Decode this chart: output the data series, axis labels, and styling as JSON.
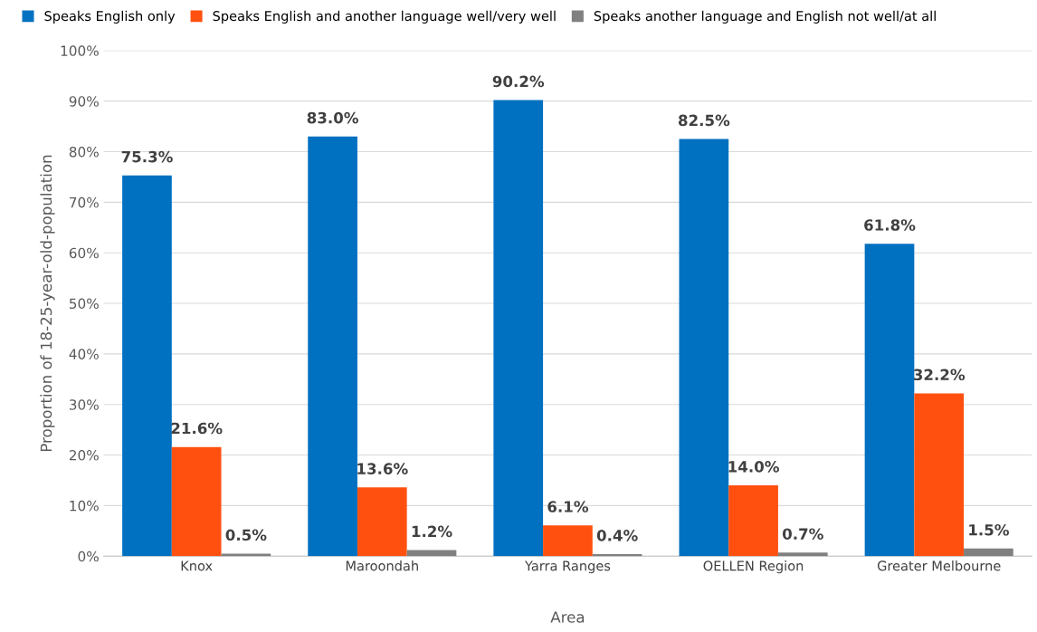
{
  "chart_data": {
    "type": "bar",
    "xlabel": "Area",
    "ylabel": "Proportion of 18-25-year-old-population",
    "categories": [
      "Knox",
      "Maroondah",
      "Yarra Ranges",
      "OELLEN Region",
      "Greater Melbourne"
    ],
    "series": [
      {
        "name": "Speaks English only",
        "color": "#0070c0",
        "values": [
          75.3,
          83.0,
          90.2,
          82.5,
          61.8
        ],
        "value_labels": [
          "75.3%",
          "83.0%",
          "90.2%",
          "82.5%",
          "61.8%"
        ]
      },
      {
        "name": "Speaks English and another language well/very well",
        "color": "#ff5010",
        "values": [
          21.6,
          13.6,
          6.1,
          14.0,
          32.2
        ],
        "value_labels": [
          "21.6%",
          "13.6%",
          "6.1%",
          "14.0%",
          "32.2%"
        ]
      },
      {
        "name": "Speaks another language and English not well/at all",
        "color": "#808080",
        "values": [
          0.5,
          1.2,
          0.4,
          0.7,
          1.5
        ],
        "value_labels": [
          "0.5%",
          "1.2%",
          "0.4%",
          "0.7%",
          "1.5%"
        ]
      }
    ],
    "ylim": [
      0,
      100
    ],
    "yticks": [
      {
        "value": 0,
        "label": "0%"
      },
      {
        "value": 10,
        "label": "10%"
      },
      {
        "value": 20,
        "label": "20%"
      },
      {
        "value": 30,
        "label": "30%"
      },
      {
        "value": 40,
        "label": "40%"
      },
      {
        "value": 50,
        "label": "50%"
      },
      {
        "value": 60,
        "label": "60%"
      },
      {
        "value": 70,
        "label": "70%"
      },
      {
        "value": 80,
        "label": "80%"
      },
      {
        "value": 90,
        "label": "90%"
      },
      {
        "value": 100,
        "label": "100%"
      }
    ],
    "grid": "y",
    "legend": "top"
  }
}
